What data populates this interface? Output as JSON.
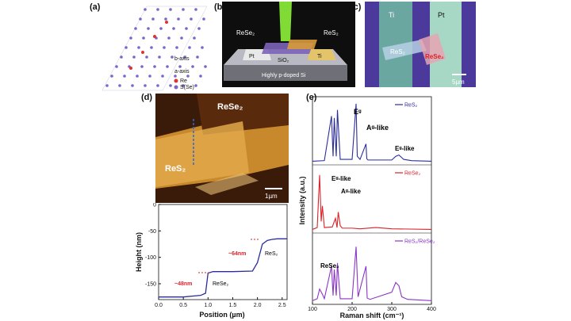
{
  "panels": {
    "a": {
      "label": "(a)",
      "axis_labels": [
        "b-axis",
        "a-axis"
      ],
      "legend": [
        "Re",
        "S(Se)"
      ]
    },
    "b": {
      "label": "(b)",
      "texts": [
        "ReSe₂",
        "ReS₂",
        "Pt",
        "SiO₂",
        "Ti",
        "Highly p-doped Si"
      ]
    },
    "c": {
      "label": "(c)",
      "texts": [
        "Ti",
        "Pt",
        "ReS₂",
        "ReSe₂"
      ],
      "scalebar": "5µm"
    },
    "d": {
      "label": "(d)",
      "afm_texts": [
        "ReSe₂",
        "ReS₂"
      ],
      "scalebar": "1µm"
    },
    "e": {
      "label": "(e)"
    }
  },
  "chart_data": [
    {
      "type": "line",
      "panel": "d",
      "xlabel": "Position (µm)",
      "ylabel": "Height (nm)",
      "xlim": [
        0.0,
        2.6
      ],
      "ylim": [
        -180,
        0
      ],
      "xticks": [
        "0.0",
        "0.5",
        "1.0",
        "1.5",
        "2.0",
        "2.5"
      ],
      "yticks": [
        "0",
        "-50",
        "-100",
        "-150"
      ],
      "x": [
        0.0,
        0.5,
        0.85,
        0.95,
        1.0,
        1.1,
        1.5,
        1.9,
        2.0,
        2.1,
        2.2,
        2.3,
        2.4,
        2.6
      ],
      "y": [
        -175,
        -175,
        -172,
        -168,
        -130,
        -127,
        -127,
        -126,
        -110,
        -75,
        -68,
        -66,
        -65,
        -65
      ],
      "annotations": [
        "~48nm",
        "~64nm",
        "ReSe₂",
        "ReS₂"
      ]
    },
    {
      "type": "line",
      "panel": "e",
      "xlabel": "Raman shift (cm⁻¹)",
      "ylabel": "Intensity (a.u.)",
      "xlim": [
        100,
        400
      ],
      "xticks": [
        "100",
        "200",
        "300",
        "400"
      ],
      "series": [
        {
          "name": "ReS₂",
          "color": "#2b2d9b",
          "x": [
            100,
            130,
            148,
            152,
            155,
            160,
            163,
            170,
            200,
            210,
            213,
            220,
            235,
            237,
            240,
            280,
            300,
            310,
            318,
            325,
            330,
            350,
            400
          ],
          "y": [
            0.02,
            0.03,
            0.75,
            0.1,
            0.72,
            0.1,
            0.85,
            0.05,
            0.05,
            0.95,
            0.1,
            0.05,
            0.3,
            0.06,
            0.04,
            0.04,
            0.04,
            0.1,
            0.12,
            0.08,
            0.05,
            0.03,
            0.02
          ],
          "annotations": [
            "Eᵍ",
            "Aᵍ-like",
            "Eᵍ-like"
          ]
        },
        {
          "name": "ReSe₂",
          "color": "#d9232a",
          "x": [
            100,
            112,
            118,
            122,
            125,
            130,
            150,
            158,
            162,
            165,
            170,
            175,
            200,
            220,
            260,
            300,
            400
          ],
          "y": [
            0.02,
            0.05,
            0.9,
            0.15,
            0.4,
            0.05,
            0.06,
            0.2,
            0.05,
            0.3,
            0.08,
            0.04,
            0.04,
            0.03,
            0.05,
            0.03,
            0.02
          ],
          "annotations": [
            "Eᵍ-like",
            "Aᵍ-like"
          ]
        },
        {
          "name": "ReS₂/ReSe₂",
          "color": "#8a35c7",
          "x": [
            100,
            112,
            118,
            125,
            130,
            148,
            152,
            155,
            160,
            163,
            170,
            200,
            210,
            215,
            235,
            238,
            245,
            300,
            310,
            318,
            325,
            340,
            400
          ],
          "y": [
            0.02,
            0.05,
            0.2,
            0.12,
            0.05,
            0.55,
            0.1,
            0.5,
            0.1,
            0.6,
            0.05,
            0.05,
            0.85,
            0.08,
            0.55,
            0.06,
            0.04,
            0.15,
            0.3,
            0.25,
            0.08,
            0.04,
            0.02
          ],
          "annotations": [
            "ReSe₂"
          ]
        }
      ]
    }
  ]
}
